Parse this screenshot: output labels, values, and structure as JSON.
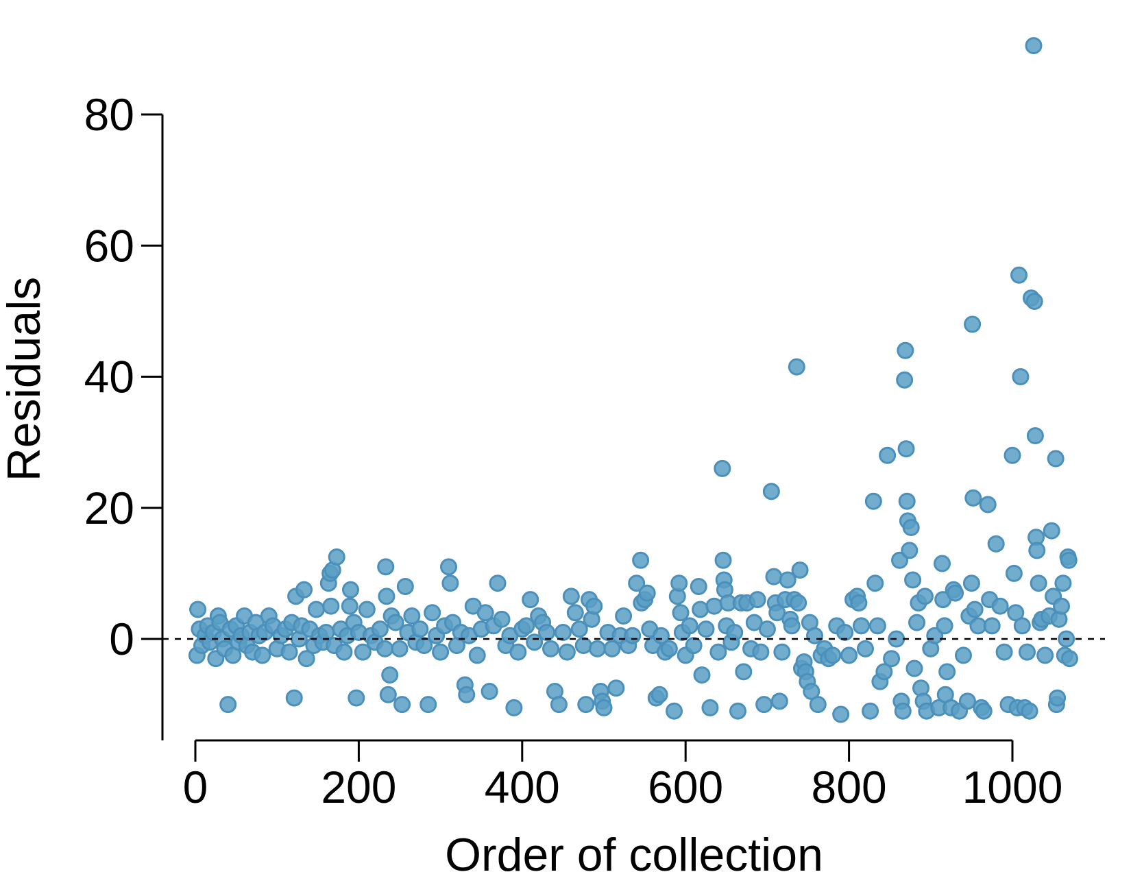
{
  "chart_data": {
    "type": "scatter",
    "title": "",
    "xlabel": "Order of collection",
    "ylabel": "Residuals",
    "xlim": [
      0,
      1070
    ],
    "ylim": [
      -15,
      90
    ],
    "xticks": [
      0,
      200,
      400,
      600,
      800,
      1000
    ],
    "yticks": [
      0,
      20,
      40,
      60,
      80
    ],
    "xtick_labels": [
      "0",
      "200",
      "400",
      "600",
      "800",
      "1000"
    ],
    "ytick_labels": [
      "0",
      "20",
      "40",
      "60",
      "80"
    ],
    "reference_line": {
      "y": 0,
      "style": "dashed"
    },
    "grid": false,
    "colors": {
      "point_fill": "#5b9fc6",
      "point_stroke": "#4a90bb"
    },
    "series": [
      {
        "points": [
          [
            2,
            -2.5
          ],
          [
            3,
            4.5
          ],
          [
            5,
            1.5
          ],
          [
            8,
            -1.0
          ],
          [
            12,
            0.5
          ],
          [
            15,
            2.0
          ],
          [
            18,
            -0.5
          ],
          [
            22,
            1.0
          ],
          [
            25,
            -3.0
          ],
          [
            28,
            3.5
          ],
          [
            30,
            2.5
          ],
          [
            33,
            0.0
          ],
          [
            36,
            -1.5
          ],
          [
            40,
            -10.0
          ],
          [
            43,
            1.5
          ],
          [
            46,
            -2.5
          ],
          [
            50,
            2.0
          ],
          [
            53,
            -0.5
          ],
          [
            56,
            0.5
          ],
          [
            60,
            3.5
          ],
          [
            63,
            -1.0
          ],
          [
            67,
            1.0
          ],
          [
            70,
            -2.0
          ],
          [
            74,
            2.5
          ],
          [
            78,
            0.5
          ],
          [
            82,
            -2.5
          ],
          [
            85,
            1.0
          ],
          [
            90,
            3.5
          ],
          [
            95,
            2.0
          ],
          [
            100,
            -1.5
          ],
          [
            105,
            0.5
          ],
          [
            110,
            1.5
          ],
          [
            115,
            -2.0
          ],
          [
            118,
            2.5
          ],
          [
            121,
            -9.0
          ],
          [
            123,
            6.5
          ],
          [
            127,
            0.0
          ],
          [
            130,
            2.0
          ],
          [
            133,
            7.5
          ],
          [
            136,
            -3.0
          ],
          [
            140,
            1.5
          ],
          [
            145,
            -1.0
          ],
          [
            148,
            4.5
          ],
          [
            152,
            0.5
          ],
          [
            156,
            -0.5
          ],
          [
            160,
            1.0
          ],
          [
            163,
            8.5
          ],
          [
            165,
            10.0
          ],
          [
            166,
            5.0
          ],
          [
            168,
            10.5
          ],
          [
            170,
            -1.0
          ],
          [
            173,
            12.5
          ],
          [
            178,
            1.5
          ],
          [
            182,
            -2.0
          ],
          [
            186,
            0.5
          ],
          [
            189,
            5.0
          ],
          [
            190,
            7.5
          ],
          [
            194,
            2.5
          ],
          [
            197,
            -9.0
          ],
          [
            200,
            1.0
          ],
          [
            205,
            -2.0
          ],
          [
            210,
            4.5
          ],
          [
            215,
            0.5
          ],
          [
            220,
            -0.5
          ],
          [
            226,
            1.5
          ],
          [
            232,
            -1.5
          ],
          [
            233,
            11.0
          ],
          [
            234,
            6.5
          ],
          [
            236,
            -8.5
          ],
          [
            238,
            -5.5
          ],
          [
            240,
            3.5
          ],
          [
            245,
            2.5
          ],
          [
            250,
            -1.5
          ],
          [
            253,
            -10.0
          ],
          [
            257,
            8.0
          ],
          [
            260,
            1.0
          ],
          [
            265,
            3.5
          ],
          [
            270,
            -0.5
          ],
          [
            275,
            1.5
          ],
          [
            280,
            -1.0
          ],
          [
            285,
            -10.0
          ],
          [
            290,
            4.0
          ],
          [
            295,
            0.5
          ],
          [
            300,
            -2.0
          ],
          [
            305,
            2.0
          ],
          [
            310,
            11.0
          ],
          [
            312,
            8.5
          ],
          [
            315,
            2.5
          ],
          [
            320,
            -1.0
          ],
          [
            325,
            1.0
          ],
          [
            330,
            -7.0
          ],
          [
            332,
            -8.5
          ],
          [
            335,
            0.5
          ],
          [
            340,
            5.0
          ],
          [
            345,
            -2.5
          ],
          [
            350,
            1.5
          ],
          [
            355,
            4.0
          ],
          [
            360,
            -8.0
          ],
          [
            365,
            2.0
          ],
          [
            370,
            8.5
          ],
          [
            375,
            3.0
          ],
          [
            380,
            -1.0
          ],
          [
            385,
            0.5
          ],
          [
            390,
            -10.5
          ],
          [
            395,
            -2.0
          ],
          [
            400,
            1.5
          ],
          [
            405,
            2.0
          ],
          [
            410,
            6.0
          ],
          [
            415,
            -0.5
          ],
          [
            420,
            3.5
          ],
          [
            425,
            2.5
          ],
          [
            430,
            1.0
          ],
          [
            435,
            -1.5
          ],
          [
            440,
            -8.0
          ],
          [
            445,
            -10.0
          ],
          [
            450,
            1.0
          ],
          [
            455,
            -2.0
          ],
          [
            460,
            6.5
          ],
          [
            465,
            4.0
          ],
          [
            470,
            1.5
          ],
          [
            475,
            -1.0
          ],
          [
            478,
            -10.0
          ],
          [
            482,
            6.0
          ],
          [
            485,
            3.0
          ],
          [
            488,
            5.0
          ],
          [
            492,
            -1.5
          ],
          [
            496,
            -8.0
          ],
          [
            498,
            -9.5
          ],
          [
            500,
            -10.5
          ],
          [
            505,
            1.0
          ],
          [
            510,
            -1.5
          ],
          [
            515,
            -7.5
          ],
          [
            520,
            0.5
          ],
          [
            524,
            3.5
          ],
          [
            530,
            -1.0
          ],
          [
            535,
            0.5
          ],
          [
            540,
            8.5
          ],
          [
            545,
            12.0
          ],
          [
            546,
            5.5
          ],
          [
            550,
            6.0
          ],
          [
            553,
            7.0
          ],
          [
            556,
            1.5
          ],
          [
            560,
            -1.0
          ],
          [
            564,
            -9.0
          ],
          [
            568,
            -8.5
          ],
          [
            570,
            0.5
          ],
          [
            575,
            -2.0
          ],
          [
            580,
            -1.5
          ],
          [
            586,
            -11.0
          ],
          [
            590,
            6.5
          ],
          [
            592,
            8.5
          ],
          [
            594,
            4.0
          ],
          [
            596,
            1.0
          ],
          [
            600,
            -2.5
          ],
          [
            605,
            2.0
          ],
          [
            610,
            -1.0
          ],
          [
            616,
            8.0
          ],
          [
            618,
            4.5
          ],
          [
            620,
            -5.5
          ],
          [
            625,
            1.5
          ],
          [
            630,
            -10.5
          ],
          [
            635,
            5.0
          ],
          [
            640,
            -2.0
          ],
          [
            645,
            26.0
          ],
          [
            646,
            12.0
          ],
          [
            647,
            9.0
          ],
          [
            648,
            7.5
          ],
          [
            650,
            2.0
          ],
          [
            652,
            5.5
          ],
          [
            656,
            -0.5
          ],
          [
            660,
            1.0
          ],
          [
            664,
            -11.0
          ],
          [
            668,
            5.5
          ],
          [
            671,
            -5.0
          ],
          [
            675,
            5.5
          ],
          [
            680,
            -1.5
          ],
          [
            684,
            2.5
          ],
          [
            688,
            6.0
          ],
          [
            692,
            -2.0
          ],
          [
            696,
            -10.0
          ],
          [
            700,
            1.5
          ],
          [
            705,
            22.5
          ],
          [
            708,
            9.5
          ],
          [
            710,
            5.5
          ],
          [
            712,
            4.0
          ],
          [
            715,
            -9.5
          ],
          [
            718,
            -2.0
          ],
          [
            722,
            6.0
          ],
          [
            725,
            9.0
          ],
          [
            728,
            3.0
          ],
          [
            730,
            2.0
          ],
          [
            733,
            6.0
          ],
          [
            736,
            41.5
          ],
          [
            738,
            5.5
          ],
          [
            740,
            10.5
          ],
          [
            742,
            -4.5
          ],
          [
            745,
            -3.5
          ],
          [
            747,
            -5.0
          ],
          [
            749,
            -6.5
          ],
          [
            752,
            2.5
          ],
          [
            754,
            -8.0
          ],
          [
            758,
            0.5
          ],
          [
            762,
            -10.0
          ],
          [
            766,
            -2.5
          ],
          [
            770,
            -1.5
          ],
          [
            775,
            -3.0
          ],
          [
            780,
            -2.5
          ],
          [
            785,
            2.0
          ],
          [
            790,
            -11.5
          ],
          [
            795,
            1.0
          ],
          [
            800,
            -2.5
          ],
          [
            805,
            6.0
          ],
          [
            810,
            6.5
          ],
          [
            812,
            5.5
          ],
          [
            815,
            2.0
          ],
          [
            820,
            -1.5
          ],
          [
            826,
            -11.0
          ],
          [
            830,
            21.0
          ],
          [
            832,
            8.5
          ],
          [
            835,
            2.0
          ],
          [
            838,
            -6.5
          ],
          [
            843,
            -5.0
          ],
          [
            847,
            28.0
          ],
          [
            852,
            -3.0
          ],
          [
            858,
            0.0
          ],
          [
            862,
            12.0
          ],
          [
            864,
            -9.5
          ],
          [
            866,
            -11.0
          ],
          [
            868,
            39.5
          ],
          [
            869,
            44.0
          ],
          [
            870,
            29.0
          ],
          [
            871,
            21.0
          ],
          [
            872,
            18.0
          ],
          [
            874,
            13.5
          ],
          [
            876,
            17.0
          ],
          [
            878,
            9.0
          ],
          [
            880,
            -4.5
          ],
          [
            883,
            2.5
          ],
          [
            885,
            5.5
          ],
          [
            888,
            -7.5
          ],
          [
            891,
            -9.5
          ],
          [
            893,
            6.5
          ],
          [
            895,
            -11.0
          ],
          [
            900,
            -1.5
          ],
          [
            905,
            0.5
          ],
          [
            910,
            -10.5
          ],
          [
            914,
            11.5
          ],
          [
            915,
            6.0
          ],
          [
            917,
            2.0
          ],
          [
            918,
            -8.5
          ],
          [
            920,
            -5.0
          ],
          [
            925,
            -10.5
          ],
          [
            928,
            7.5
          ],
          [
            930,
            7.0
          ],
          [
            935,
            -11.0
          ],
          [
            940,
            -2.5
          ],
          [
            945,
            -9.5
          ],
          [
            947,
            3.5
          ],
          [
            950,
            8.5
          ],
          [
            951,
            48.0
          ],
          [
            952,
            21.5
          ],
          [
            954,
            4.5
          ],
          [
            958,
            2.0
          ],
          [
            962,
            -10.5
          ],
          [
            965,
            -11.0
          ],
          [
            970,
            20.5
          ],
          [
            972,
            6.0
          ],
          [
            975,
            2.0
          ],
          [
            980,
            14.5
          ],
          [
            985,
            5.0
          ],
          [
            990,
            -2.0
          ],
          [
            995,
            -10.0
          ],
          [
            1000,
            28.0
          ],
          [
            1002,
            10.0
          ],
          [
            1004,
            4.0
          ],
          [
            1006,
            -10.5
          ],
          [
            1008,
            55.5
          ],
          [
            1010,
            40.0
          ],
          [
            1012,
            2.0
          ],
          [
            1015,
            -10.5
          ],
          [
            1018,
            -2.0
          ],
          [
            1021,
            -11.0
          ],
          [
            1023,
            52.0
          ],
          [
            1026,
            90.5
          ],
          [
            1027,
            51.5
          ],
          [
            1028,
            31.0
          ],
          [
            1029,
            15.5
          ],
          [
            1030,
            13.5
          ],
          [
            1032,
            8.5
          ],
          [
            1034,
            2.5
          ],
          [
            1036,
            3.0
          ],
          [
            1040,
            -2.5
          ],
          [
            1045,
            3.5
          ],
          [
            1048,
            16.5
          ],
          [
            1050,
            6.5
          ],
          [
            1053,
            27.5
          ],
          [
            1054,
            -10.0
          ],
          [
            1055,
            -9.0
          ],
          [
            1057,
            3.0
          ],
          [
            1060,
            5.0
          ],
          [
            1062,
            8.5
          ],
          [
            1064,
            -2.5
          ],
          [
            1066,
            0.0
          ],
          [
            1068,
            12.5
          ],
          [
            1069,
            12.0
          ],
          [
            1070,
            -3.0
          ]
        ]
      }
    ]
  }
}
